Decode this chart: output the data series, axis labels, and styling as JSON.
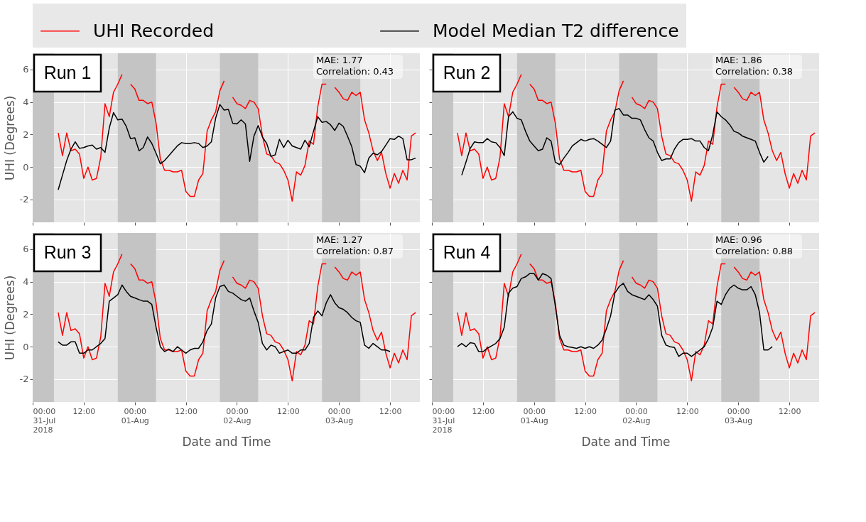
{
  "chart_data": [
    {
      "type": "line",
      "legend": "top",
      "grid": true,
      "tick_labels": "y",
      "ylabel": "UHI (Degrees)",
      "annotations": [
        "Run 1",
        "MAE: 1.77",
        "Correlation: 0.43"
      ],
      "x": [
        "2018-07-31T06:00",
        "2018-07-31T07:00",
        "2018-07-31T08:00",
        "2018-07-31T09:00",
        "2018-07-31T10:00",
        "2018-07-31T11:00",
        "2018-07-31T12:00",
        "2018-07-31T13:00",
        "2018-07-31T14:00",
        "2018-07-31T15:00",
        "2018-07-31T16:00",
        "2018-07-31T17:00",
        "2018-07-31T18:00",
        "2018-07-31T19:00",
        "2018-07-31T20:00",
        "2018-07-31T21:00",
        "2018-07-31T22:00",
        "2018-07-31T23:00",
        "2018-08-01T00:00",
        "2018-08-01T01:00",
        "2018-08-01T02:00",
        "2018-08-01T03:00",
        "2018-08-01T04:00",
        "2018-08-01T05:00",
        "2018-08-01T06:00",
        "2018-08-01T07:00",
        "2018-08-01T08:00",
        "2018-08-01T09:00",
        "2018-08-01T10:00",
        "2018-08-01T11:00",
        "2018-08-01T12:00",
        "2018-08-01T13:00",
        "2018-08-01T14:00",
        "2018-08-01T15:00",
        "2018-08-01T16:00",
        "2018-08-01T17:00",
        "2018-08-01T18:00",
        "2018-08-01T19:00",
        "2018-08-01T20:00",
        "2018-08-01T21:00",
        "2018-08-01T22:00",
        "2018-08-01T23:00",
        "2018-08-02T00:00",
        "2018-08-02T01:00",
        "2018-08-02T02:00",
        "2018-08-02T03:00",
        "2018-08-02T04:00",
        "2018-08-02T05:00",
        "2018-08-02T06:00",
        "2018-08-02T07:00",
        "2018-08-02T08:00",
        "2018-08-02T09:00",
        "2018-08-02T10:00",
        "2018-08-02T11:00",
        "2018-08-02T12:00",
        "2018-08-02T13:00",
        "2018-08-02T14:00",
        "2018-08-02T15:00",
        "2018-08-02T16:00",
        "2018-08-02T17:00",
        "2018-08-02T18:00",
        "2018-08-02T19:00",
        "2018-08-02T20:00",
        "2018-08-02T21:00",
        "2018-08-02T22:00",
        "2018-08-02T23:00",
        "2018-08-03T00:00",
        "2018-08-03T01:00",
        "2018-08-03T02:00",
        "2018-08-03T03:00",
        "2018-08-03T04:00",
        "2018-08-03T05:00",
        "2018-08-03T06:00",
        "2018-08-03T07:00",
        "2018-08-03T08:00",
        "2018-08-03T09:00",
        "2018-08-03T10:00",
        "2018-08-03T11:00",
        "2018-08-03T12:00",
        "2018-08-03T13:00",
        "2018-08-03T14:00",
        "2018-08-03T15:00",
        "2018-08-03T16:00",
        "2018-08-03T17:00",
        "2018-08-03T18:00"
      ],
      "series": [
        {
          "name": "UHI Recorded",
          "color": "#ff0000",
          "values": [
            2.1,
            0.7,
            2.1,
            1.0,
            1.1,
            0.8,
            -0.7,
            0.0,
            -0.8,
            -0.7,
            0.6,
            3.9,
            3.1,
            4.6,
            5.1,
            5.7,
            null,
            5.1,
            4.8,
            4.1,
            4.1,
            3.9,
            4.0,
            2.7,
            0.5,
            -0.2,
            -0.2,
            -0.3,
            -0.3,
            -0.2,
            -1.5,
            -1.8,
            -1.8,
            -0.8,
            -0.4,
            2.2,
            2.9,
            3.4,
            4.7,
            5.3,
            null,
            4.3,
            3.9,
            3.8,
            3.6,
            4.1,
            4.0,
            3.6,
            1.9,
            0.8,
            0.7,
            0.3,
            0.2,
            -0.2,
            -0.8,
            -2.1,
            -0.3,
            -0.5,
            0.1,
            1.6,
            1.4,
            3.7,
            5.1,
            5.1,
            null,
            4.9,
            4.6,
            4.2,
            4.1,
            4.6,
            4.4,
            4.6,
            2.9,
            2.1,
            1.0,
            0.4,
            0.9,
            -0.4,
            -1.3,
            -0.4,
            -1.0,
            -0.2,
            -0.8,
            1.9,
            2.1
          ]
        },
        {
          "name": "Model Median T2 difference",
          "color": "#000000",
          "values": [
            -1.4,
            -0.5,
            0.4,
            1.1,
            1.55,
            1.15,
            1.2,
            1.3,
            1.35,
            1.1,
            1.2,
            0.9,
            2.4,
            3.35,
            2.9,
            2.95,
            2.5,
            1.75,
            1.8,
            1.0,
            1.2,
            1.85,
            1.45,
            0.85,
            0.2,
            0.4,
            0.7,
            1.0,
            1.3,
            1.5,
            1.45,
            1.45,
            1.5,
            1.45,
            1.2,
            1.3,
            1.55,
            3.0,
            3.85,
            3.5,
            3.55,
            2.7,
            2.65,
            2.9,
            2.65,
            0.35,
            1.9,
            2.55,
            1.85,
            1.45,
            0.65,
            0.75,
            1.7,
            1.2,
            1.65,
            1.3,
            1.2,
            1.1,
            1.65,
            1.25,
            2.2,
            3.1,
            2.75,
            2.8,
            2.6,
            2.25,
            2.7,
            2.5,
            1.9,
            1.25,
            0.15,
            0.05,
            -0.35,
            0.55,
            0.85,
            0.75,
            0.95,
            1.35,
            1.75,
            1.7,
            1.9,
            1.75,
            0.45,
            0.45,
            0.55
          ]
        }
      ],
      "xlim": [
        "2018-07-31T00:00",
        "2018-08-03T19:00"
      ],
      "xticks": [
        {
          "value": "2018-07-31T00:00",
          "label": "00:00\n31-Jul\n2018"
        },
        {
          "value": "2018-07-31T12:00",
          "label": "12:00"
        },
        {
          "value": "2018-08-01T00:00",
          "label": "00:00\n01-Aug"
        },
        {
          "value": "2018-08-01T12:00",
          "label": "12:00"
        },
        {
          "value": "2018-08-02T00:00",
          "label": "00:00\n02-Aug"
        },
        {
          "value": "2018-08-02T12:00",
          "label": "12:00"
        },
        {
          "value": "2018-08-03T00:00",
          "label": "00:00\n03-Aug"
        },
        {
          "value": "2018-08-03T12:00",
          "label": "12:00"
        }
      ],
      "ylim": [
        -3.4,
        7.0
      ],
      "yticks": [
        -2,
        0,
        2,
        4,
        6
      ],
      "bands": [
        {
          "axis": "x",
          "from": "2018-07-31T00:00",
          "to": "2018-07-31T05:00",
          "color": "#c4c4c4"
        },
        {
          "axis": "x",
          "from": "2018-07-31T20:00",
          "to": "2018-08-01T05:00",
          "color": "#c4c4c4"
        },
        {
          "axis": "x",
          "from": "2018-08-01T20:00",
          "to": "2018-08-02T05:00",
          "color": "#c4c4c4"
        },
        {
          "axis": "x",
          "from": "2018-08-02T20:00",
          "to": "2018-08-03T05:00",
          "color": "#c4c4c4"
        }
      ]
    },
    {
      "type": "line",
      "legend": "top",
      "grid": true,
      "tick_labels": false,
      "annotations": [
        "Run 2",
        "MAE: 1.86",
        "Correlation: 0.38"
      ],
      "x": [
        "2018-07-31T06:00",
        "2018-07-31T07:00",
        "2018-07-31T08:00",
        "2018-07-31T09:00",
        "2018-07-31T10:00",
        "2018-07-31T11:00",
        "2018-07-31T12:00",
        "2018-07-31T13:00",
        "2018-07-31T14:00",
        "2018-07-31T15:00",
        "2018-07-31T16:00",
        "2018-07-31T17:00",
        "2018-07-31T18:00",
        "2018-07-31T19:00",
        "2018-07-31T20:00",
        "2018-07-31T21:00",
        "2018-07-31T22:00",
        "2018-07-31T23:00",
        "2018-08-01T00:00",
        "2018-08-01T01:00",
        "2018-08-01T02:00",
        "2018-08-01T03:00",
        "2018-08-01T04:00",
        "2018-08-01T05:00",
        "2018-08-01T06:00",
        "2018-08-01T07:00",
        "2018-08-01T08:00",
        "2018-08-01T09:00",
        "2018-08-01T10:00",
        "2018-08-01T11:00",
        "2018-08-01T12:00",
        "2018-08-01T13:00",
        "2018-08-01T14:00",
        "2018-08-01T15:00",
        "2018-08-01T16:00",
        "2018-08-01T17:00",
        "2018-08-01T18:00",
        "2018-08-01T19:00",
        "2018-08-01T20:00",
        "2018-08-01T21:00",
        "2018-08-01T22:00",
        "2018-08-01T23:00",
        "2018-08-02T00:00",
        "2018-08-02T01:00",
        "2018-08-02T02:00",
        "2018-08-02T03:00",
        "2018-08-02T04:00",
        "2018-08-02T05:00",
        "2018-08-02T06:00",
        "2018-08-02T07:00",
        "2018-08-02T08:00",
        "2018-08-02T09:00",
        "2018-08-02T10:00",
        "2018-08-02T11:00",
        "2018-08-02T12:00",
        "2018-08-02T13:00",
        "2018-08-02T14:00",
        "2018-08-02T15:00",
        "2018-08-02T16:00",
        "2018-08-02T17:00",
        "2018-08-02T18:00",
        "2018-08-02T19:00",
        "2018-08-02T20:00",
        "2018-08-02T21:00",
        "2018-08-02T22:00",
        "2018-08-02T23:00",
        "2018-08-03T00:00",
        "2018-08-03T01:00",
        "2018-08-03T02:00",
        "2018-08-03T03:00",
        "2018-08-03T04:00",
        "2018-08-03T05:00",
        "2018-08-03T06:00",
        "2018-08-03T07:00",
        "2018-08-03T08:00",
        "2018-08-03T09:00",
        "2018-08-03T10:00",
        "2018-08-03T11:00",
        "2018-08-03T12:00",
        "2018-08-03T13:00",
        "2018-08-03T14:00",
        "2018-08-03T15:00",
        "2018-08-03T16:00",
        "2018-08-03T17:00",
        "2018-08-03T18:00"
      ],
      "series": [
        {
          "name": "UHI Recorded",
          "color": "#ff0000",
          "values": [
            2.1,
            0.7,
            2.1,
            1.0,
            1.1,
            0.8,
            -0.7,
            0.0,
            -0.8,
            -0.7,
            0.6,
            3.9,
            3.1,
            4.6,
            5.1,
            5.7,
            null,
            5.1,
            4.8,
            4.1,
            4.1,
            3.9,
            4.0,
            2.7,
            0.5,
            -0.2,
            -0.2,
            -0.3,
            -0.3,
            -0.2,
            -1.5,
            -1.8,
            -1.8,
            -0.8,
            -0.4,
            2.2,
            2.9,
            3.4,
            4.7,
            5.3,
            null,
            4.3,
            3.9,
            3.8,
            3.6,
            4.1,
            4.0,
            3.6,
            1.9,
            0.8,
            0.7,
            0.3,
            0.2,
            -0.2,
            -0.8,
            -2.1,
            -0.3,
            -0.5,
            0.1,
            1.6,
            1.4,
            3.7,
            5.1,
            5.1,
            null,
            4.9,
            4.6,
            4.2,
            4.1,
            4.6,
            4.4,
            4.6,
            2.9,
            2.1,
            1.0,
            0.4,
            0.9,
            -0.4,
            -1.3,
            -0.4,
            -1.0,
            -0.2,
            -0.8,
            1.9,
            2.1
          ]
        },
        {
          "name": "Model Median T2 difference",
          "color": "#000000",
          "values": [
            null,
            -0.5,
            0.3,
            1.15,
            1.55,
            1.5,
            1.5,
            1.75,
            1.55,
            1.5,
            1.2,
            0.7,
            3.1,
            3.4,
            3.0,
            2.9,
            2.2,
            1.6,
            1.3,
            1.0,
            1.1,
            1.8,
            1.6,
            0.3,
            0.15,
            0.55,
            0.9,
            1.3,
            1.5,
            1.7,
            1.6,
            1.7,
            1.75,
            1.6,
            1.4,
            1.2,
            1.6,
            3.5,
            3.6,
            3.2,
            3.2,
            3.0,
            3.0,
            2.9,
            2.3,
            1.8,
            1.6,
            0.9,
            0.4,
            0.5,
            0.5,
            1.1,
            1.5,
            1.7,
            1.7,
            1.75,
            1.6,
            1.6,
            1.2,
            1.0,
            2.0,
            3.4,
            3.1,
            2.9,
            2.6,
            2.2,
            2.1,
            1.9,
            1.8,
            1.7,
            1.6,
            0.9,
            0.3,
            0.65,
            null,
            null,
            null,
            null,
            null,
            null,
            null,
            null,
            null,
            null,
            null
          ]
        }
      ],
      "xlim": [
        "2018-07-31T00:00",
        "2018-08-03T19:00"
      ],
      "xticks": [
        {
          "value": "2018-07-31T00:00",
          "label": "00:00\n31-Jul\n2018"
        },
        {
          "value": "2018-07-31T12:00",
          "label": "12:00"
        },
        {
          "value": "2018-08-01T00:00",
          "label": "00:00\n01-Aug"
        },
        {
          "value": "2018-08-01T12:00",
          "label": "12:00"
        },
        {
          "value": "2018-08-02T00:00",
          "label": "00:00\n02-Aug"
        },
        {
          "value": "2018-08-02T12:00",
          "label": "12:00"
        },
        {
          "value": "2018-08-03T00:00",
          "label": "00:00\n03-Aug"
        },
        {
          "value": "2018-08-03T12:00",
          "label": "12:00"
        }
      ],
      "ylim": [
        -3.4,
        7.0
      ],
      "yticks": [
        -2,
        0,
        2,
        4,
        6
      ],
      "bands": [
        {
          "axis": "x",
          "from": "2018-07-31T00:00",
          "to": "2018-07-31T05:00",
          "color": "#c4c4c4"
        },
        {
          "axis": "x",
          "from": "2018-07-31T20:00",
          "to": "2018-08-01T05:00",
          "color": "#c4c4c4"
        },
        {
          "axis": "x",
          "from": "2018-08-01T20:00",
          "to": "2018-08-02T05:00",
          "color": "#c4c4c4"
        },
        {
          "axis": "x",
          "from": "2018-08-02T20:00",
          "to": "2018-08-03T05:00",
          "color": "#c4c4c4"
        }
      ]
    },
    {
      "type": "line",
      "legend": "top",
      "grid": true,
      "ylabel": "UHI (Degrees)",
      "xlabel": "Date and Time",
      "annotations": [
        "Run 3",
        "MAE: 1.27",
        "Correlation: 0.87"
      ],
      "x": [
        "2018-07-31T06:00",
        "2018-07-31T07:00",
        "2018-07-31T08:00",
        "2018-07-31T09:00",
        "2018-07-31T10:00",
        "2018-07-31T11:00",
        "2018-07-31T12:00",
        "2018-07-31T13:00",
        "2018-07-31T14:00",
        "2018-07-31T15:00",
        "2018-07-31T16:00",
        "2018-07-31T17:00",
        "2018-07-31T18:00",
        "2018-07-31T19:00",
        "2018-07-31T20:00",
        "2018-07-31T21:00",
        "2018-07-31T22:00",
        "2018-07-31T23:00",
        "2018-08-01T00:00",
        "2018-08-01T01:00",
        "2018-08-01T02:00",
        "2018-08-01T03:00",
        "2018-08-01T04:00",
        "2018-08-01T05:00",
        "2018-08-01T06:00",
        "2018-08-01T07:00",
        "2018-08-01T08:00",
        "2018-08-01T09:00",
        "2018-08-01T10:00",
        "2018-08-01T11:00",
        "2018-08-01T12:00",
        "2018-08-01T13:00",
        "2018-08-01T14:00",
        "2018-08-01T15:00",
        "2018-08-01T16:00",
        "2018-08-01T17:00",
        "2018-08-01T18:00",
        "2018-08-01T19:00",
        "2018-08-01T20:00",
        "2018-08-01T21:00",
        "2018-08-01T22:00",
        "2018-08-01T23:00",
        "2018-08-02T00:00",
        "2018-08-02T01:00",
        "2018-08-02T02:00",
        "2018-08-02T03:00",
        "2018-08-02T04:00",
        "2018-08-02T05:00",
        "2018-08-02T06:00",
        "2018-08-02T07:00",
        "2018-08-02T08:00",
        "2018-08-02T09:00",
        "2018-08-02T10:00",
        "2018-08-02T11:00",
        "2018-08-02T12:00",
        "2018-08-02T13:00",
        "2018-08-02T14:00",
        "2018-08-02T15:00",
        "2018-08-02T16:00",
        "2018-08-02T17:00",
        "2018-08-02T18:00",
        "2018-08-02T19:00",
        "2018-08-02T20:00",
        "2018-08-02T21:00",
        "2018-08-02T22:00",
        "2018-08-02T23:00",
        "2018-08-03T00:00",
        "2018-08-03T01:00",
        "2018-08-03T02:00",
        "2018-08-03T03:00",
        "2018-08-03T04:00",
        "2018-08-03T05:00",
        "2018-08-03T06:00",
        "2018-08-03T07:00",
        "2018-08-03T08:00",
        "2018-08-03T09:00",
        "2018-08-03T10:00",
        "2018-08-03T11:00",
        "2018-08-03T12:00",
        "2018-08-03T13:00",
        "2018-08-03T14:00",
        "2018-08-03T15:00",
        "2018-08-03T16:00",
        "2018-08-03T17:00",
        "2018-08-03T18:00"
      ],
      "series": [
        {
          "name": "UHI Recorded",
          "color": "#ff0000",
          "values": [
            2.1,
            0.7,
            2.1,
            1.0,
            1.1,
            0.8,
            -0.7,
            0.0,
            -0.8,
            -0.7,
            0.6,
            3.9,
            3.1,
            4.6,
            5.1,
            5.7,
            null,
            5.1,
            4.8,
            4.1,
            4.1,
            3.9,
            4.0,
            2.7,
            0.5,
            -0.2,
            -0.2,
            -0.3,
            -0.3,
            -0.2,
            -1.5,
            -1.8,
            -1.8,
            -0.8,
            -0.4,
            2.2,
            2.9,
            3.4,
            4.7,
            5.3,
            null,
            4.3,
            3.9,
            3.8,
            3.6,
            4.1,
            4.0,
            3.6,
            1.9,
            0.8,
            0.7,
            0.3,
            0.2,
            -0.2,
            -0.8,
            -2.1,
            -0.3,
            -0.5,
            0.1,
            1.6,
            1.4,
            3.7,
            5.1,
            5.1,
            null,
            4.9,
            4.6,
            4.2,
            4.1,
            4.6,
            4.4,
            4.6,
            2.9,
            2.1,
            1.0,
            0.4,
            0.9,
            -0.4,
            -1.3,
            -0.4,
            -1.0,
            -0.2,
            -0.8,
            1.9,
            2.1
          ]
        },
        {
          "name": "Model Median T2 difference",
          "color": "#000000",
          "values": [
            0.3,
            0.1,
            0.1,
            0.3,
            0.3,
            -0.4,
            -0.4,
            -0.2,
            -0.2,
            0.0,
            0.2,
            0.5,
            2.8,
            3.0,
            3.2,
            3.8,
            3.4,
            3.1,
            3.0,
            2.9,
            2.8,
            2.8,
            2.6,
            1.2,
            0.0,
            -0.3,
            -0.15,
            -0.3,
            0.0,
            -0.2,
            -0.4,
            -0.2,
            -0.1,
            -0.1,
            0.3,
            1.0,
            1.4,
            3.0,
            3.7,
            3.8,
            3.4,
            3.3,
            3.1,
            2.9,
            2.8,
            3.0,
            2.2,
            1.5,
            0.2,
            -0.2,
            0.1,
            0.0,
            -0.4,
            -0.3,
            -0.2,
            -0.4,
            -0.4,
            -0.2,
            -0.2,
            0.2,
            1.8,
            2.2,
            1.9,
            2.7,
            3.2,
            2.7,
            2.4,
            2.3,
            2.1,
            1.8,
            1.6,
            1.5,
            0.1,
            -0.1,
            0.2,
            0.0,
            -0.2,
            -0.2,
            -0.3,
            null,
            null,
            null,
            null,
            null,
            null
          ]
        }
      ],
      "xlim": [
        "2018-07-31T00:00",
        "2018-08-03T19:00"
      ],
      "xticks": [
        {
          "value": "2018-07-31T00:00",
          "label": "00:00\n31-Jul\n2018"
        },
        {
          "value": "2018-07-31T12:00",
          "label": "12:00"
        },
        {
          "value": "2018-08-01T00:00",
          "label": "00:00\n01-Aug"
        },
        {
          "value": "2018-08-01T12:00",
          "label": "12:00"
        },
        {
          "value": "2018-08-02T00:00",
          "label": "00:00\n02-Aug"
        },
        {
          "value": "2018-08-02T12:00",
          "label": "12:00"
        },
        {
          "value": "2018-08-03T00:00",
          "label": "00:00\n03-Aug"
        },
        {
          "value": "2018-08-03T12:00",
          "label": "12:00"
        }
      ],
      "ylim": [
        -3.4,
        7.0
      ],
      "yticks": [
        -2,
        0,
        2,
        4,
        6
      ],
      "bands": [
        {
          "axis": "x",
          "from": "2018-07-31T00:00",
          "to": "2018-07-31T05:00",
          "color": "#c4c4c4"
        },
        {
          "axis": "x",
          "from": "2018-07-31T20:00",
          "to": "2018-08-01T05:00",
          "color": "#c4c4c4"
        },
        {
          "axis": "x",
          "from": "2018-08-01T20:00",
          "to": "2018-08-02T05:00",
          "color": "#c4c4c4"
        },
        {
          "axis": "x",
          "from": "2018-08-02T20:00",
          "to": "2018-08-03T05:00",
          "color": "#c4c4c4"
        }
      ]
    },
    {
      "type": "line",
      "legend": "top",
      "grid": true,
      "tick_labels": "x",
      "xlabel": "Date and Time",
      "annotations": [
        "Run 4",
        "MAE: 0.96",
        "Correlation: 0.88"
      ],
      "x": [
        "2018-07-31T06:00",
        "2018-07-31T07:00",
        "2018-07-31T08:00",
        "2018-07-31T09:00",
        "2018-07-31T10:00",
        "2018-07-31T11:00",
        "2018-07-31T12:00",
        "2018-07-31T13:00",
        "2018-07-31T14:00",
        "2018-07-31T15:00",
        "2018-07-31T16:00",
        "2018-07-31T17:00",
        "2018-07-31T18:00",
        "2018-07-31T19:00",
        "2018-07-31T20:00",
        "2018-07-31T21:00",
        "2018-07-31T22:00",
        "2018-07-31T23:00",
        "2018-08-01T00:00",
        "2018-08-01T01:00",
        "2018-08-01T02:00",
        "2018-08-01T03:00",
        "2018-08-01T04:00",
        "2018-08-01T05:00",
        "2018-08-01T06:00",
        "2018-08-01T07:00",
        "2018-08-01T08:00",
        "2018-08-01T09:00",
        "2018-08-01T10:00",
        "2018-08-01T11:00",
        "2018-08-01T12:00",
        "2018-08-01T13:00",
        "2018-08-01T14:00",
        "2018-08-01T15:00",
        "2018-08-01T16:00",
        "2018-08-01T17:00",
        "2018-08-01T18:00",
        "2018-08-01T19:00",
        "2018-08-01T20:00",
        "2018-08-01T21:00",
        "2018-08-01T22:00",
        "2018-08-01T23:00",
        "2018-08-02T00:00",
        "2018-08-02T01:00",
        "2018-08-02T02:00",
        "2018-08-02T03:00",
        "2018-08-02T04:00",
        "2018-08-02T05:00",
        "2018-08-02T06:00",
        "2018-08-02T07:00",
        "2018-08-02T08:00",
        "2018-08-02T09:00",
        "2018-08-02T10:00",
        "2018-08-02T11:00",
        "2018-08-02T12:00",
        "2018-08-02T13:00",
        "2018-08-02T14:00",
        "2018-08-02T15:00",
        "2018-08-02T16:00",
        "2018-08-02T17:00",
        "2018-08-02T18:00",
        "2018-08-02T19:00",
        "2018-08-02T20:00",
        "2018-08-02T21:00",
        "2018-08-02T22:00",
        "2018-08-02T23:00",
        "2018-08-03T00:00",
        "2018-08-03T01:00",
        "2018-08-03T02:00",
        "2018-08-03T03:00",
        "2018-08-03T04:00",
        "2018-08-03T05:00",
        "2018-08-03T06:00",
        "2018-08-03T07:00",
        "2018-08-03T08:00",
        "2018-08-03T09:00",
        "2018-08-03T10:00",
        "2018-08-03T11:00",
        "2018-08-03T12:00",
        "2018-08-03T13:00",
        "2018-08-03T14:00",
        "2018-08-03T15:00",
        "2018-08-03T16:00",
        "2018-08-03T17:00",
        "2018-08-03T18:00"
      ],
      "series": [
        {
          "name": "UHI Recorded",
          "color": "#ff0000",
          "values": [
            2.1,
            0.7,
            2.1,
            1.0,
            1.1,
            0.8,
            -0.7,
            0.0,
            -0.8,
            -0.7,
            0.6,
            3.9,
            3.1,
            4.6,
            5.1,
            5.7,
            null,
            5.1,
            4.8,
            4.1,
            4.1,
            3.9,
            4.0,
            2.7,
            0.5,
            -0.2,
            -0.2,
            -0.3,
            -0.3,
            -0.2,
            -1.5,
            -1.8,
            -1.8,
            -0.8,
            -0.4,
            2.2,
            2.9,
            3.4,
            4.7,
            5.3,
            null,
            4.3,
            3.9,
            3.8,
            3.6,
            4.1,
            4.0,
            3.6,
            1.9,
            0.8,
            0.7,
            0.3,
            0.2,
            -0.2,
            -0.8,
            -2.1,
            -0.3,
            -0.5,
            0.1,
            1.6,
            1.4,
            3.7,
            5.1,
            5.1,
            null,
            4.9,
            4.6,
            4.2,
            4.1,
            4.6,
            4.4,
            4.6,
            2.9,
            2.1,
            1.0,
            0.4,
            0.9,
            -0.4,
            -1.3,
            -0.4,
            -1.0,
            -0.2,
            -0.8,
            1.9,
            2.1
          ]
        },
        {
          "name": "Model Median T2 difference",
          "color": "#000000",
          "values": [
            0.0,
            0.2,
            0.0,
            0.25,
            0.2,
            -0.3,
            -0.3,
            -0.1,
            0.05,
            0.2,
            0.5,
            1.2,
            3.3,
            3.6,
            3.7,
            4.2,
            4.3,
            4.5,
            4.5,
            4.1,
            4.5,
            4.4,
            4.2,
            2.5,
            0.7,
            0.1,
            0.0,
            -0.05,
            -0.1,
            0.0,
            -0.1,
            0.0,
            -0.1,
            0.1,
            0.4,
            1.1,
            1.9,
            3.3,
            3.7,
            3.9,
            3.4,
            3.2,
            3.1,
            3.0,
            2.9,
            3.2,
            2.9,
            2.5,
            0.7,
            0.1,
            0.0,
            -0.05,
            -0.6,
            -0.4,
            -0.4,
            -0.6,
            -0.4,
            -0.2,
            0.0,
            0.5,
            1.2,
            2.8,
            2.6,
            3.2,
            3.6,
            3.8,
            3.6,
            3.5,
            3.5,
            3.7,
            3.2,
            2.1,
            -0.2,
            -0.2,
            0.0,
            null,
            null,
            null,
            null,
            null,
            null,
            null,
            null,
            null,
            null
          ]
        }
      ],
      "xlim": [
        "2018-07-31T00:00",
        "2018-08-03T19:00"
      ],
      "xticks": [
        {
          "value": "2018-07-31T00:00",
          "label": "00:00\n31-Jul\n2018"
        },
        {
          "value": "2018-07-31T12:00",
          "label": "12:00"
        },
        {
          "value": "2018-08-01T00:00",
          "label": "00:00\n01-Aug"
        },
        {
          "value": "2018-08-01T12:00",
          "label": "12:00"
        },
        {
          "value": "2018-08-02T00:00",
          "label": "00:00\n02-Aug"
        },
        {
          "value": "2018-08-02T12:00",
          "label": "12:00"
        },
        {
          "value": "2018-08-03T00:00",
          "label": "00:00\n03-Aug"
        },
        {
          "value": "2018-08-03T12:00",
          "label": "12:00"
        }
      ],
      "ylim": [
        -3.4,
        7.0
      ],
      "yticks": [
        -2,
        0,
        2,
        4,
        6
      ],
      "bands": [
        {
          "axis": "x",
          "from": "2018-07-31T00:00",
          "to": "2018-07-31T05:00",
          "color": "#c4c4c4"
        },
        {
          "axis": "x",
          "from": "2018-07-31T20:00",
          "to": "2018-08-01T05:00",
          "color": "#c4c4c4"
        },
        {
          "axis": "x",
          "from": "2018-08-01T20:00",
          "to": "2018-08-02T05:00",
          "color": "#c4c4c4"
        },
        {
          "axis": "x",
          "from": "2018-08-02T20:00",
          "to": "2018-08-03T05:00",
          "color": "#c4c4c4"
        }
      ]
    }
  ]
}
